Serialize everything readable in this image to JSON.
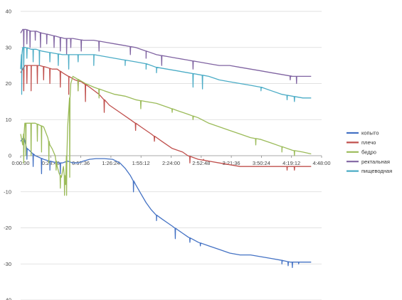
{
  "chart_data": {
    "type": "line",
    "title": "",
    "xlabel": "",
    "ylabel": "",
    "x_unit": "minutes",
    "xlim": [
      0,
      288
    ],
    "ylim": [
      -40,
      40
    ],
    "y_ticks": [
      40,
      30,
      20,
      10,
      0,
      -10,
      -20,
      -30,
      -40
    ],
    "y_tick_labels": [
      "40",
      "30",
      "20",
      "10",
      "0",
      "-10",
      "-20",
      "-30",
      "-40"
    ],
    "x_ticks": [
      0,
      28.8,
      57.6,
      86.4,
      115.2,
      144,
      172.8,
      201.6,
      230.4,
      259.2,
      288
    ],
    "x_tick_labels": [
      "0:00:00",
      "0:28:48",
      "0:57:36",
      "1:26:24",
      "1:55:12",
      "2:24:00",
      "2:52:48",
      "3:21:36",
      "3:50:24",
      "4:19:12",
      "4:48:00"
    ],
    "grid": true,
    "legend_position": "right",
    "series": [
      {
        "name": "копыто",
        "color": "#4472c4",
        "points": [
          [
            0,
            4
          ],
          [
            3,
            5
          ],
          [
            6,
            2
          ],
          [
            10,
            1
          ],
          [
            14,
            0
          ],
          [
            18,
            -0.5
          ],
          [
            22,
            -1
          ],
          [
            28,
            -1.5
          ],
          [
            35,
            -2
          ],
          [
            40,
            -2
          ],
          [
            45,
            -1.5
          ],
          [
            50,
            -2
          ],
          [
            55,
            -2
          ],
          [
            60,
            -1.5
          ],
          [
            66,
            -1
          ],
          [
            72,
            -0.8
          ],
          [
            80,
            -0.8
          ],
          [
            88,
            -1
          ],
          [
            95,
            -2
          ],
          [
            100,
            -3.5
          ],
          [
            105,
            -5.5
          ],
          [
            110,
            -8
          ],
          [
            115,
            -10.5
          ],
          [
            120,
            -13
          ],
          [
            125,
            -15
          ],
          [
            130,
            -16.5
          ],
          [
            135,
            -17.5
          ],
          [
            140,
            -18.5
          ],
          [
            145,
            -19.5
          ],
          [
            150,
            -20.5
          ],
          [
            155,
            -21.5
          ],
          [
            160,
            -22.5
          ],
          [
            170,
            -24
          ],
          [
            180,
            -25
          ],
          [
            190,
            -26
          ],
          [
            200,
            -27
          ],
          [
            210,
            -27.5
          ],
          [
            220,
            -27.5
          ],
          [
            230,
            -28
          ],
          [
            240,
            -28.5
          ],
          [
            250,
            -29
          ],
          [
            258,
            -29.5
          ],
          [
            262,
            -29.5
          ],
          [
            266,
            -29.5
          ],
          [
            270,
            -29.5
          ],
          [
            274,
            -29.5
          ],
          [
            278,
            -29.5
          ]
        ],
        "spikes": [
          [
            3,
            1
          ],
          [
            6,
            -1
          ],
          [
            12,
            -3
          ],
          [
            20,
            -5
          ],
          [
            28,
            -4
          ],
          [
            38,
            -5
          ],
          [
            44,
            -4
          ],
          [
            108,
            -10
          ],
          [
            130,
            -18
          ],
          [
            148,
            -23
          ],
          [
            162,
            -24
          ],
          [
            172,
            -25
          ],
          [
            250,
            -30
          ],
          [
            256,
            -30.5
          ],
          [
            260,
            -31
          ],
          [
            266,
            -30
          ]
        ]
      },
      {
        "name": "плечо",
        "color": "#c0504d",
        "points": [
          [
            0,
            23
          ],
          [
            2,
            24
          ],
          [
            4,
            25
          ],
          [
            10,
            25
          ],
          [
            18,
            25
          ],
          [
            25,
            24.5
          ],
          [
            30,
            24
          ],
          [
            35,
            24
          ],
          [
            40,
            23
          ],
          [
            46,
            22
          ],
          [
            52,
            21
          ],
          [
            58,
            20.5
          ],
          [
            66,
            19
          ],
          [
            75,
            17
          ],
          [
            85,
            14
          ],
          [
            95,
            12
          ],
          [
            105,
            10
          ],
          [
            115,
            8
          ],
          [
            125,
            6
          ],
          [
            135,
            4
          ],
          [
            145,
            2
          ],
          [
            155,
            1
          ],
          [
            160,
            0
          ],
          [
            170,
            -1
          ],
          [
            180,
            -1.5
          ],
          [
            190,
            -2
          ],
          [
            200,
            -2.5
          ],
          [
            210,
            -3
          ],
          [
            220,
            -3
          ],
          [
            230,
            -3
          ],
          [
            240,
            -3
          ],
          [
            250,
            -3
          ],
          [
            260,
            -3
          ],
          [
            270,
            -3
          ],
          [
            278,
            -3
          ]
        ],
        "spikes": [
          [
            3,
            18
          ],
          [
            6,
            20
          ],
          [
            10,
            18
          ],
          [
            16,
            20
          ],
          [
            22,
            21
          ],
          [
            28,
            20
          ],
          [
            38,
            19
          ],
          [
            46,
            17
          ],
          [
            55,
            18
          ],
          [
            62,
            15
          ],
          [
            80,
            12
          ],
          [
            110,
            7
          ],
          [
            128,
            4
          ],
          [
            162,
            -2
          ],
          [
            175,
            -1
          ],
          [
            255,
            -4
          ],
          [
            262,
            -4
          ]
        ]
      },
      {
        "name": "бедро",
        "color": "#9bbb59",
        "points": [
          [
            0,
            6
          ],
          [
            2,
            3
          ],
          [
            4,
            9
          ],
          [
            8,
            9
          ],
          [
            14,
            9
          ],
          [
            18,
            8.5
          ],
          [
            22,
            8
          ],
          [
            26,
            5
          ],
          [
            28,
            3
          ],
          [
            30,
            2
          ],
          [
            33,
            0
          ],
          [
            35,
            -3
          ],
          [
            37,
            -5
          ],
          [
            39,
            -6
          ],
          [
            41,
            -3
          ],
          [
            43,
            -8
          ],
          [
            45,
            8
          ],
          [
            48,
            20
          ],
          [
            50,
            22
          ],
          [
            56,
            21
          ],
          [
            62,
            20
          ],
          [
            70,
            19
          ],
          [
            80,
            18
          ],
          [
            90,
            17
          ],
          [
            100,
            16.5
          ],
          [
            110,
            15.5
          ],
          [
            120,
            15
          ],
          [
            130,
            14.5
          ],
          [
            140,
            13.5
          ],
          [
            150,
            12.5
          ],
          [
            160,
            11.5
          ],
          [
            170,
            10.5
          ],
          [
            180,
            9
          ],
          [
            190,
            8
          ],
          [
            200,
            7
          ],
          [
            210,
            6
          ],
          [
            220,
            5
          ],
          [
            230,
            4.5
          ],
          [
            240,
            3.5
          ],
          [
            250,
            2.5
          ],
          [
            260,
            1.5
          ],
          [
            270,
            1
          ],
          [
            278,
            0.5
          ]
        ],
        "spikes": [
          [
            3,
            -2
          ],
          [
            5,
            0
          ],
          [
            10,
            0
          ],
          [
            16,
            4
          ],
          [
            20,
            1
          ],
          [
            27,
            -2
          ],
          [
            34,
            -4
          ],
          [
            38,
            -9
          ],
          [
            42,
            -11
          ],
          [
            44,
            -11
          ],
          [
            47,
            -6
          ],
          [
            55,
            18
          ],
          [
            75,
            16
          ],
          [
            115,
            13
          ],
          [
            145,
            12
          ],
          [
            165,
            10
          ],
          [
            225,
            3
          ],
          [
            250,
            1
          ],
          [
            262,
            0
          ]
        ]
      },
      {
        "name": "ректальная",
        "color": "#8064a2",
        "points": [
          [
            0,
            34
          ],
          [
            2,
            35
          ],
          [
            5,
            35
          ],
          [
            10,
            34.5
          ],
          [
            15,
            34.5
          ],
          [
            20,
            34
          ],
          [
            28,
            33.5
          ],
          [
            35,
            33
          ],
          [
            42,
            32.5
          ],
          [
            50,
            32.5
          ],
          [
            60,
            32
          ],
          [
            70,
            32
          ],
          [
            80,
            31.5
          ],
          [
            90,
            31
          ],
          [
            100,
            30.5
          ],
          [
            110,
            30
          ],
          [
            120,
            29
          ],
          [
            130,
            28
          ],
          [
            140,
            27.5
          ],
          [
            150,
            27
          ],
          [
            160,
            26.5
          ],
          [
            170,
            26
          ],
          [
            180,
            25.5
          ],
          [
            190,
            25
          ],
          [
            200,
            25
          ],
          [
            210,
            24.5
          ],
          [
            220,
            24
          ],
          [
            230,
            23.5
          ],
          [
            240,
            23
          ],
          [
            250,
            22.5
          ],
          [
            260,
            22
          ],
          [
            270,
            22
          ],
          [
            278,
            22
          ]
        ],
        "spikes": [
          [
            3,
            29
          ],
          [
            6,
            31
          ],
          [
            9,
            30
          ],
          [
            14,
            32
          ],
          [
            19,
            30
          ],
          [
            25,
            31
          ],
          [
            32,
            30
          ],
          [
            38,
            29
          ],
          [
            44,
            28
          ],
          [
            48,
            30
          ],
          [
            58,
            29
          ],
          [
            75,
            29
          ],
          [
            105,
            28
          ],
          [
            120,
            27
          ],
          [
            135,
            25
          ],
          [
            165,
            24
          ],
          [
            258,
            21
          ],
          [
            264,
            20
          ]
        ]
      },
      {
        "name": "пищеводная",
        "color": "#4bacc6",
        "points": [
          [
            0,
            24
          ],
          [
            1,
            28
          ],
          [
            2,
            30
          ],
          [
            5,
            30
          ],
          [
            10,
            29.5
          ],
          [
            15,
            29.5
          ],
          [
            20,
            29
          ],
          [
            30,
            28.5
          ],
          [
            40,
            28
          ],
          [
            50,
            28
          ],
          [
            60,
            28
          ],
          [
            70,
            28
          ],
          [
            80,
            27.5
          ],
          [
            90,
            27
          ],
          [
            100,
            26.5
          ],
          [
            110,
            26
          ],
          [
            120,
            25.5
          ],
          [
            130,
            24.5
          ],
          [
            140,
            24
          ],
          [
            150,
            23.5
          ],
          [
            160,
            23
          ],
          [
            170,
            22.5
          ],
          [
            180,
            22
          ],
          [
            190,
            21
          ],
          [
            200,
            20.5
          ],
          [
            210,
            20
          ],
          [
            220,
            19.5
          ],
          [
            230,
            19
          ],
          [
            240,
            18
          ],
          [
            250,
            17
          ],
          [
            260,
            16.5
          ],
          [
            270,
            16
          ],
          [
            278,
            16
          ]
        ],
        "spikes": [
          [
            1,
            17
          ],
          [
            3,
            24
          ],
          [
            6,
            27
          ],
          [
            12,
            26
          ],
          [
            18,
            25
          ],
          [
            28,
            26
          ],
          [
            36,
            25
          ],
          [
            46,
            24
          ],
          [
            55,
            26
          ],
          [
            70,
            25
          ],
          [
            100,
            25
          ],
          [
            120,
            24
          ],
          [
            130,
            23
          ],
          [
            165,
            19
          ],
          [
            174,
            18.5
          ],
          [
            230,
            18
          ],
          [
            255,
            15.5
          ],
          [
            262,
            15
          ]
        ]
      }
    ]
  }
}
